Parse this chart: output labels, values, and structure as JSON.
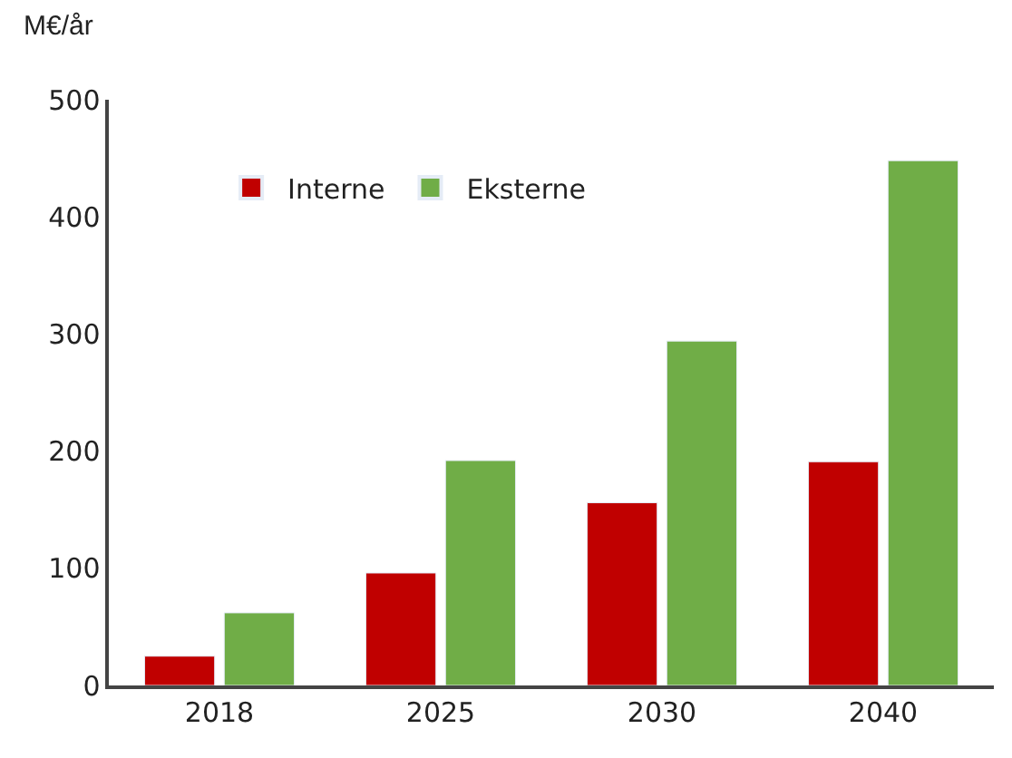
{
  "chart_data": {
    "type": "bar",
    "ylabel": "M€/år",
    "categories": [
      "2018",
      "2025",
      "2030",
      "2040"
    ],
    "series": [
      {
        "name": "Interne",
        "color": "#c00000",
        "values": [
          25,
          96,
          156,
          191
        ]
      },
      {
        "name": "Eksterne",
        "color": "#70ad47",
        "values": [
          62,
          192,
          294,
          448
        ]
      }
    ],
    "ylim": [
      0,
      500
    ],
    "yticks": [
      0,
      100,
      200,
      300,
      400,
      500
    ],
    "legend": "top left"
  }
}
